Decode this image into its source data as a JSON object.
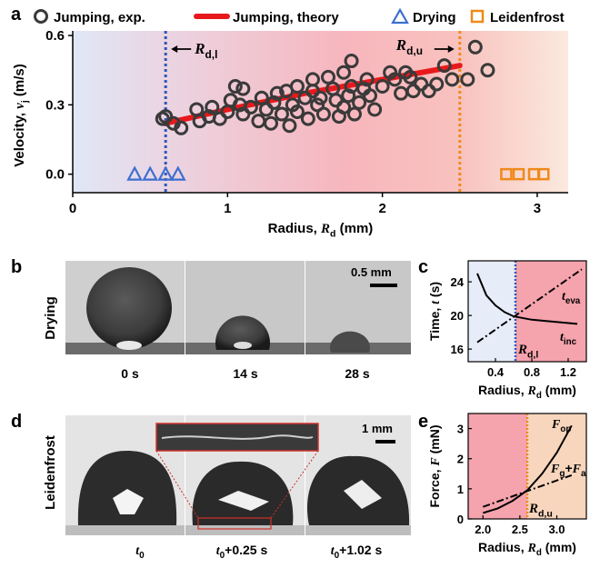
{
  "panel_letters": {
    "a": "a",
    "b": "b",
    "c": "c",
    "d": "d",
    "e": "e"
  },
  "chart_data": [
    {
      "type": "scatter",
      "legend": [
        {
          "name": "Jumping, exp.",
          "marker": "circle-open",
          "color": "#3a3a3a"
        },
        {
          "name": "Jumping, theory",
          "marker": "line",
          "color": "#e8191c"
        },
        {
          "name": "Drying",
          "marker": "triangle-open",
          "color": "#3b6fd1"
        },
        {
          "name": "Leidenfrost",
          "marker": "square-open",
          "color": "#ef8a1b"
        }
      ],
      "legend_placement": "top",
      "xlabel": "Radius, R_d (mm)",
      "xlabel_parts": {
        "pre": "Radius, ",
        "var": "R",
        "sub": "d",
        "post": " (mm)"
      },
      "ylabel": "Velocity, v_j (m/s)",
      "ylabel_parts": {
        "pre": "Velocity, ",
        "var": "v",
        "sub": "j",
        "post": " (m/s)"
      },
      "xlim": [
        0,
        3.2
      ],
      "ylim": [
        -0.08,
        0.62
      ],
      "xticks": [
        0,
        1,
        2,
        3
      ],
      "yticks": [
        0.0,
        0.3,
        0.6
      ],
      "xtick_labels": [
        "0",
        "1",
        "2",
        "3"
      ],
      "ytick_labels": [
        "0.0",
        "0.3",
        "0.6"
      ],
      "grid": false,
      "background_gradient": [
        "#dfe7f6",
        "#f7b6bd",
        "#fbe6dc"
      ],
      "thresholds": [
        {
          "x": 0.6,
          "label_var": "R",
          "label_sub": "d,l",
          "color": "#2d58b8"
        },
        {
          "x": 2.5,
          "label_var": "R",
          "label_sub": "d,u",
          "color": "#ef8a1b"
        }
      ],
      "series": [
        {
          "name": "Jumping, exp.",
          "points": [
            [
              0.58,
              0.24
            ],
            [
              0.6,
              0.25
            ],
            [
              0.65,
              0.22
            ],
            [
              0.7,
              0.2
            ],
            [
              0.8,
              0.28
            ],
            [
              0.82,
              0.23
            ],
            [
              0.88,
              0.25
            ],
            [
              0.9,
              0.29
            ],
            [
              0.95,
              0.24
            ],
            [
              1.0,
              0.27
            ],
            [
              1.02,
              0.32
            ],
            [
              1.05,
              0.38
            ],
            [
              1.08,
              0.3
            ],
            [
              1.1,
              0.37
            ],
            [
              1.1,
              0.26
            ],
            [
              1.15,
              0.29
            ],
            [
              1.2,
              0.23
            ],
            [
              1.22,
              0.33
            ],
            [
              1.25,
              0.28
            ],
            [
              1.28,
              0.22
            ],
            [
              1.3,
              0.31
            ],
            [
              1.32,
              0.35
            ],
            [
              1.35,
              0.26
            ],
            [
              1.38,
              0.36
            ],
            [
              1.4,
              0.21
            ],
            [
              1.42,
              0.3
            ],
            [
              1.45,
              0.38
            ],
            [
              1.45,
              0.27
            ],
            [
              1.5,
              0.33
            ],
            [
              1.52,
              0.24
            ],
            [
              1.55,
              0.41
            ],
            [
              1.55,
              0.36
            ],
            [
              1.58,
              0.3
            ],
            [
              1.6,
              0.33
            ],
            [
              1.62,
              0.26
            ],
            [
              1.65,
              0.42
            ],
            [
              1.68,
              0.37
            ],
            [
              1.7,
              0.32
            ],
            [
              1.72,
              0.25
            ],
            [
              1.75,
              0.29
            ],
            [
              1.75,
              0.44
            ],
            [
              1.78,
              0.34
            ],
            [
              1.8,
              0.49
            ],
            [
              1.8,
              0.38
            ],
            [
              1.82,
              0.26
            ],
            [
              1.85,
              0.31
            ],
            [
              1.88,
              0.37
            ],
            [
              1.9,
              0.41
            ],
            [
              1.92,
              0.34
            ],
            [
              1.95,
              0.28
            ],
            [
              2.0,
              0.38
            ],
            [
              2.05,
              0.44
            ],
            [
              2.08,
              0.41
            ],
            [
              2.12,
              0.35
            ],
            [
              2.15,
              0.44
            ],
            [
              2.18,
              0.42
            ],
            [
              2.2,
              0.36
            ],
            [
              2.25,
              0.39
            ],
            [
              2.3,
              0.36
            ],
            [
              2.35,
              0.39
            ],
            [
              2.4,
              0.47
            ],
            [
              2.45,
              0.41
            ],
            [
              2.6,
              0.55
            ],
            [
              2.55,
              0.41
            ],
            [
              2.68,
              0.45
            ]
          ]
        },
        {
          "name": "Jumping, theory",
          "x": [
            0.6,
            1.0,
            1.5,
            2.0,
            2.5
          ],
          "y": [
            0.22,
            0.28,
            0.35,
            0.41,
            0.47
          ]
        },
        {
          "name": "Drying",
          "points": [
            [
              0.4,
              0.0
            ],
            [
              0.5,
              0.0
            ],
            [
              0.6,
              0.0
            ],
            [
              0.68,
              0.0
            ]
          ]
        },
        {
          "name": "Leidenfrost",
          "points": [
            [
              2.8,
              0.0
            ],
            [
              2.88,
              0.0
            ],
            [
              2.98,
              0.0
            ],
            [
              3.04,
              0.0
            ]
          ]
        }
      ]
    },
    {
      "type": "line",
      "xlabel": "Radius, R_d (mm)",
      "xlabel_parts": {
        "pre": "Radius, ",
        "var": "R",
        "sub": "d",
        "post": " (mm)"
      },
      "ylabel": "Time, t (s)",
      "ylabel_parts": {
        "pre": "Time, ",
        "var": "t",
        "post": " (s)"
      },
      "xlim": [
        0.1,
        1.4
      ],
      "ylim": [
        14.5,
        26.5
      ],
      "xticks": [
        0.4,
        0.8,
        1.2
      ],
      "yticks": [
        16,
        20,
        24
      ],
      "xtick_labels": [
        "0.4",
        "0.8",
        "1.2"
      ],
      "ytick_labels": [
        "16",
        "20",
        "24"
      ],
      "regions": [
        {
          "from": 0.1,
          "to": 0.62,
          "color": "#e6ecf8"
        },
        {
          "from": 0.62,
          "to": 1.4,
          "color": "#f5a3ad"
        }
      ],
      "threshold": {
        "x": 0.62,
        "label_var": "R",
        "label_sub": "d,l",
        "color": "#2d58b8"
      },
      "series": [
        {
          "name": "t_inc",
          "label_var": "t",
          "label_sub": "inc",
          "style": "solid",
          "x": [
            0.2,
            0.3,
            0.4,
            0.5,
            0.6,
            0.8,
            1.0,
            1.3
          ],
          "y": [
            25.0,
            22.4,
            21.2,
            20.4,
            19.9,
            19.5,
            19.3,
            19.0
          ]
        },
        {
          "name": "t_eva",
          "label_var": "t",
          "label_sub": "eva",
          "style": "dashdot",
          "x": [
            0.2,
            1.35
          ],
          "y": [
            16.8,
            25.5
          ]
        }
      ]
    },
    {
      "type": "line",
      "xlabel": "Radius, R_d (mm)",
      "xlabel_parts": {
        "pre": "Radius, ",
        "var": "R",
        "sub": "d",
        "post": " (mm)"
      },
      "ylabel": "Force, F (mN)",
      "ylabel_parts": {
        "pre": "Force, ",
        "var": "F",
        "post": " (mN)"
      },
      "xlim": [
        1.8,
        3.4
      ],
      "ylim": [
        0,
        3.5
      ],
      "xticks": [
        2.0,
        2.5,
        3.0
      ],
      "yticks": [
        0,
        1,
        2,
        3
      ],
      "xtick_labels": [
        "2.0",
        "2.5",
        "3.0"
      ],
      "ytick_labels": [
        "0",
        "1",
        "2",
        "3"
      ],
      "regions": [
        {
          "from": 1.8,
          "to": 2.6,
          "color": "#f5a3ad"
        },
        {
          "from": 2.6,
          "to": 3.4,
          "color": "#f8d6bd"
        }
      ],
      "threshold": {
        "x": 2.6,
        "label_var": "R",
        "label_sub": "d,u",
        "color": "#ef8a1b"
      },
      "series": [
        {
          "name": "F_op",
          "label_var": "F",
          "label_sub": "op",
          "style": "solid",
          "x": [
            2.0,
            2.2,
            2.4,
            2.6,
            2.8,
            3.0,
            3.2
          ],
          "y": [
            0.2,
            0.35,
            0.6,
            0.95,
            1.5,
            2.2,
            3.1
          ]
        },
        {
          "name": "F_g+F_a",
          "label_parts": [
            "F",
            "g",
            "+F",
            "a"
          ],
          "style": "dashdot",
          "x": [
            2.0,
            3.2
          ],
          "y": [
            0.4,
            1.45
          ]
        }
      ]
    }
  ],
  "images": {
    "drying": {
      "row_label": "Drying",
      "scale_bar": "0.5 mm",
      "frames": [
        "0 s",
        "14 s",
        "28 s"
      ]
    },
    "leidenfrost": {
      "row_label": "Leidenfrost",
      "scale_bar": "1 mm",
      "frames": [
        {
          "var": "t",
          "sub": "0",
          "post": ""
        },
        {
          "var": "t",
          "sub": "0",
          "post": "+0.25 s"
        },
        {
          "var": "t",
          "sub": "0",
          "post": "+1.02 s"
        }
      ]
    }
  }
}
